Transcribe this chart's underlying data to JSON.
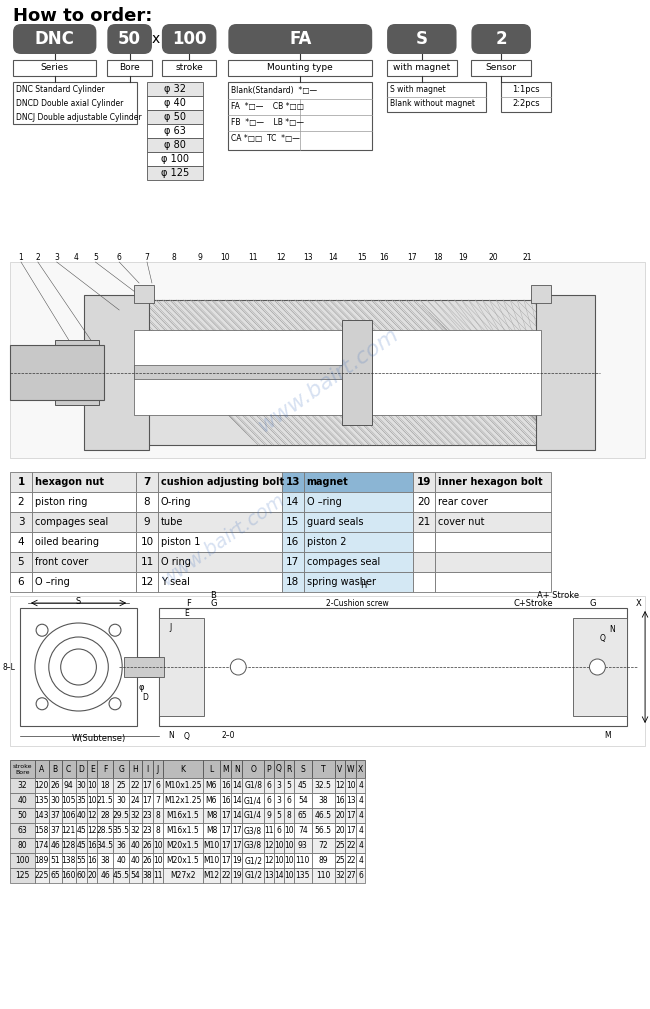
{
  "title": "How to order:",
  "series_items": [
    "DNC Standard Cylinder",
    "DNCD Double axial Cylinder",
    "DNCJ Double adjustable Cylinder"
  ],
  "bore_items": [
    "φ 32",
    "φ 40",
    "φ 50",
    "φ 63",
    "φ 80",
    "φ 100",
    "φ 125"
  ],
  "parts_table": [
    [
      1,
      "hexagon nut",
      7,
      "cushion adjusting bolt",
      13,
      "magnet",
      19,
      "inner hexagon bolt"
    ],
    [
      2,
      "piston ring",
      8,
      "O-ring",
      14,
      "O –ring",
      20,
      "rear cover"
    ],
    [
      3,
      "compages seal",
      9,
      "tube",
      15,
      "guard seals",
      21,
      "cover nut"
    ],
    [
      4,
      "oiled bearing",
      10,
      "piston 1",
      16,
      "piston 2",
      "",
      ""
    ],
    [
      5,
      "front cover",
      11,
      "O ring",
      17,
      "compages seal",
      "",
      ""
    ],
    [
      6,
      "O –ring",
      12,
      "Y seal",
      18,
      "spring washer",
      "",
      ""
    ]
  ],
  "dim_table_headers": [
    "stroke\nBore",
    "A",
    "B",
    "C",
    "D",
    "E",
    "F",
    "G",
    "H",
    "I",
    "J",
    "K",
    "L",
    "M",
    "N",
    "O",
    "P",
    "Q",
    "R",
    "S",
    "T",
    "V",
    "W",
    "X"
  ],
  "dim_table_data": [
    [
      32,
      120,
      26,
      94,
      30,
      10,
      18,
      25,
      22,
      17,
      6,
      "M10x1.25",
      "M6",
      16,
      14,
      "G1/8",
      6,
      3,
      5,
      45,
      32.5,
      12,
      10,
      4
    ],
    [
      40,
      135,
      30,
      105,
      35,
      10,
      21.5,
      30,
      24,
      17,
      7,
      "M12x1.25",
      "M6",
      16,
      14,
      "G1/4",
      6,
      3,
      6,
      54,
      38,
      16,
      13,
      4
    ],
    [
      50,
      143,
      37,
      106,
      40,
      12,
      28,
      29.5,
      32,
      23,
      8,
      "M16x1.5",
      "M8",
      17,
      14,
      "G1/4",
      9,
      5,
      8,
      65,
      46.5,
      20,
      17,
      4
    ],
    [
      63,
      158,
      37,
      121,
      45,
      12,
      28.5,
      35.5,
      32,
      23,
      8,
      "M16x1.5",
      "M8",
      17,
      17,
      "G3/8",
      11,
      6,
      10,
      74,
      56.5,
      20,
      17,
      4
    ],
    [
      80,
      174,
      46,
      128,
      45,
      16,
      34.5,
      36,
      40,
      26,
      10,
      "M20x1.5",
      "M10",
      17,
      17,
      "G3/8",
      12,
      10,
      10,
      93,
      72,
      25,
      22,
      4
    ],
    [
      100,
      189,
      51,
      138,
      55,
      16,
      38,
      40,
      40,
      26,
      10,
      "M20x1.5",
      "M10",
      17,
      19,
      "G1/2",
      12,
      10,
      10,
      110,
      89,
      25,
      22,
      4
    ],
    [
      125,
      225,
      65,
      160,
      60,
      20,
      46,
      45.5,
      54,
      38,
      11,
      "M27x2",
      "M12",
      22,
      19,
      "G1/2",
      13,
      14,
      10,
      135,
      110,
      32,
      27,
      6
    ]
  ],
  "bg_color": "#ffffff",
  "box_color": "#5a5a5a",
  "watermark": "www.bairt.com"
}
